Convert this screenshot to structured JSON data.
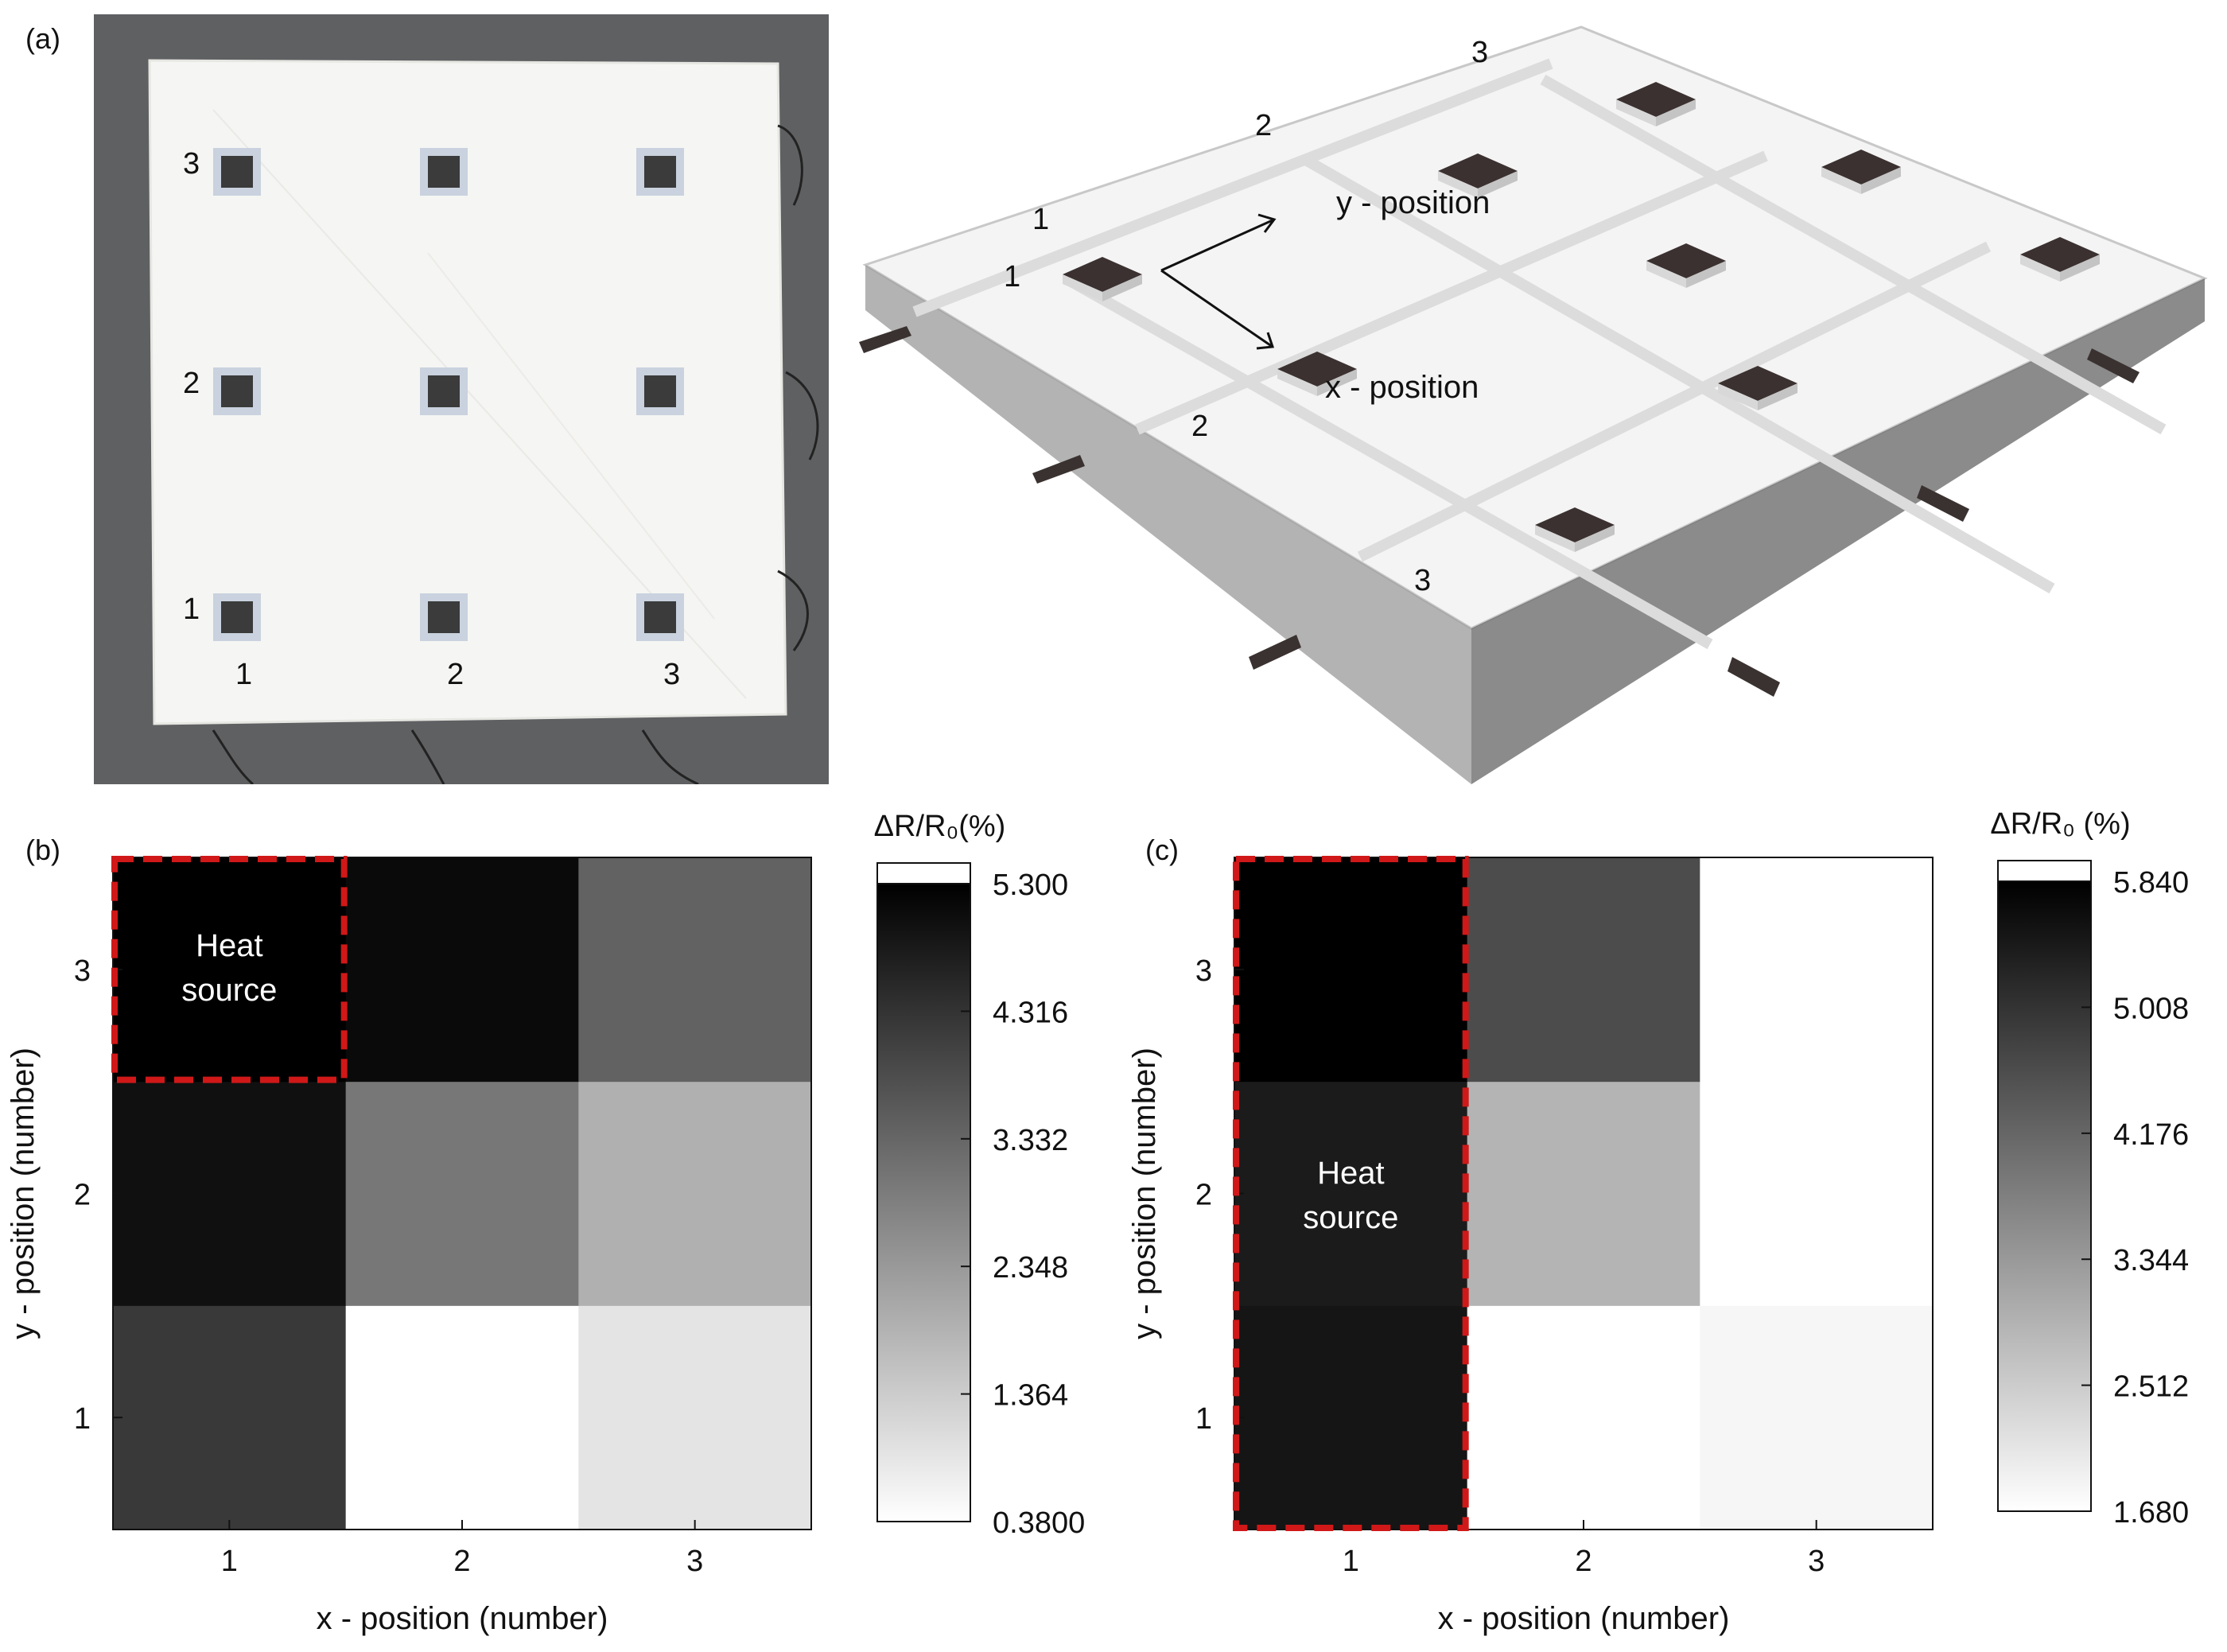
{
  "panels": {
    "a": "(a)",
    "b": "(b)",
    "c": "(c)"
  },
  "photo": {
    "row_labels": [
      "3",
      "2",
      "1"
    ],
    "col_labels": [
      "1",
      "2",
      "3"
    ]
  },
  "render3d": {
    "labels": {
      "top_3": "3",
      "top_2": "2",
      "top_1": "1",
      "left_1": "1",
      "left_2": "2",
      "left_3": "3",
      "y_position": "y - position",
      "x_position": "x - position"
    }
  },
  "chart_data": [
    {
      "type": "heatmap",
      "panel": "(b)",
      "x": [
        "1",
        "2",
        "3"
      ],
      "y": [
        "1",
        "2",
        "3"
      ],
      "values": [
        [
          4.2,
          0.38,
          0.9
        ],
        [
          5.0,
          3.0,
          1.9
        ],
        [
          5.3,
          5.1,
          3.4
        ]
      ],
      "xlabel": "x - position (number)",
      "ylabel": "y - position (number)",
      "colorbar_label": "ΔR/R₀(%)",
      "colorbar_ticks": [
        "5.300",
        "4.316",
        "3.332",
        "2.348",
        "1.364",
        "0.3800"
      ],
      "vmin": 0.38,
      "vmax": 5.3,
      "colormap": "white-to-black",
      "annotation": {
        "lines": [
          "Heat",
          "source"
        ],
        "x": "1",
        "y": "3"
      }
    },
    {
      "type": "heatmap",
      "panel": "(c)",
      "x": [
        "1",
        "2",
        "3"
      ],
      "y": [
        "1",
        "2",
        "3"
      ],
      "values": [
        [
          5.5,
          1.68,
          1.82
        ],
        [
          5.4,
          2.9,
          1.68
        ],
        [
          5.84,
          4.6,
          1.68
        ]
      ],
      "xlabel": "x - position (number)",
      "ylabel": "y - position (number)",
      "colorbar_label": "ΔR/R₀ (%)",
      "colorbar_ticks": [
        "5.840",
        "5.008",
        "4.176",
        "3.344",
        "2.512",
        "1.680"
      ],
      "vmin": 1.68,
      "vmax": 5.84,
      "colormap": "white-to-black",
      "annotation": {
        "lines": [
          "Heat",
          "source"
        ],
        "x": "1",
        "y": "1-3"
      }
    }
  ]
}
